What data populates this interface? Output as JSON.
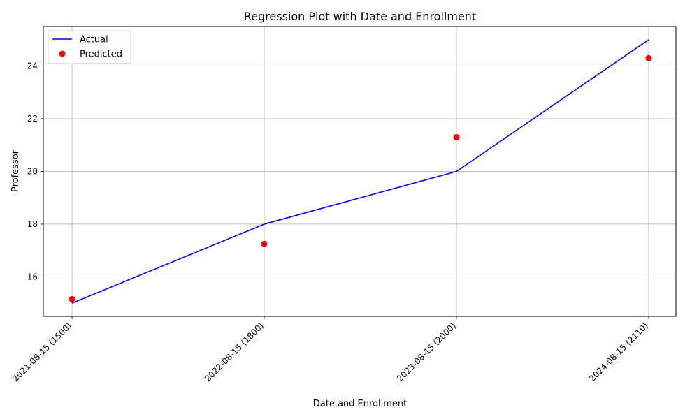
{
  "chart_data": {
    "type": "line",
    "title": "Regression Plot with Date and Enrollment",
    "xlabel": "Date and Enrollment",
    "ylabel": "Professor",
    "categories": [
      "2021-08-15 (1500)",
      "2022-08-15 (1800)",
      "2023-08-15 (2000)",
      "2024-08-15 (2110)"
    ],
    "series": [
      {
        "name": "Actual",
        "kind": "line",
        "color": "#0000ff",
        "values": [
          15,
          18,
          20,
          25
        ]
      },
      {
        "name": "Predicted",
        "kind": "scatter",
        "color": "#ff0000",
        "values": [
          15.15,
          17.25,
          21.3,
          24.3
        ]
      }
    ],
    "ylim": [
      14.5,
      25.5
    ],
    "yticks": [
      16,
      18,
      20,
      22,
      24
    ],
    "grid": true,
    "legend": "top-left"
  }
}
